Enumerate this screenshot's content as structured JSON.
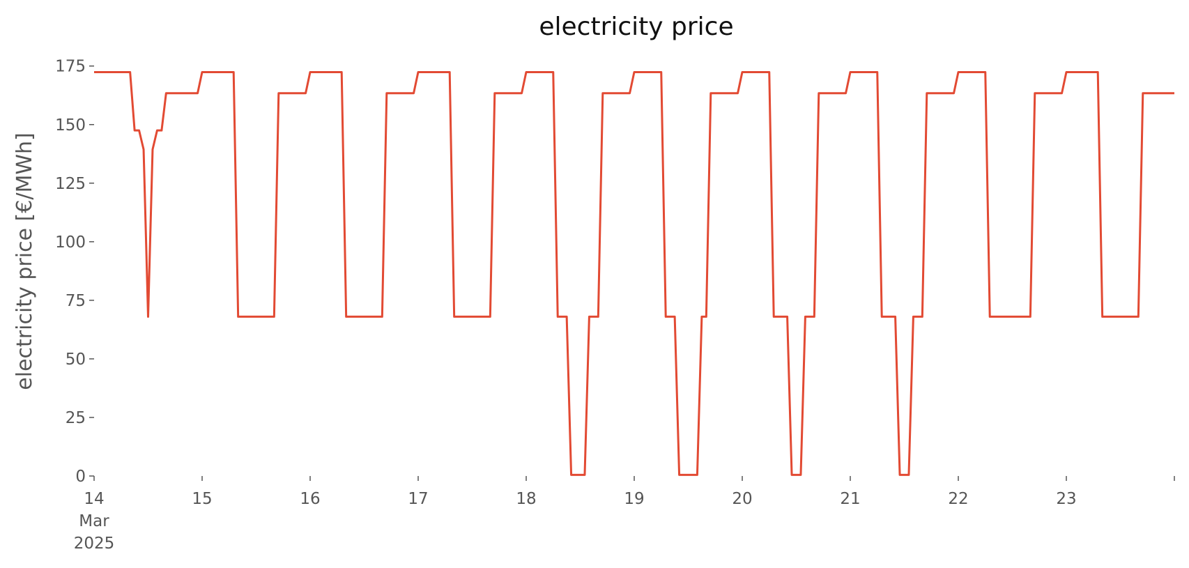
{
  "chart_data": {
    "type": "line",
    "title": "electricity price",
    "xlabel": "",
    "ylabel": "electricity price [€/MWh]",
    "x_start": "2025-03-14T00:00",
    "x_end": "2025-03-24T00:00",
    "x_tick_labels": [
      {
        "x": "2025-03-14T00:00",
        "lines": [
          "14",
          "Mar",
          "2025"
        ]
      },
      {
        "x": "2025-03-15T00:00",
        "lines": [
          "15"
        ]
      },
      {
        "x": "2025-03-16T00:00",
        "lines": [
          "16"
        ]
      },
      {
        "x": "2025-03-17T00:00",
        "lines": [
          "17"
        ]
      },
      {
        "x": "2025-03-18T00:00",
        "lines": [
          "18"
        ]
      },
      {
        "x": "2025-03-19T00:00",
        "lines": [
          "19"
        ]
      },
      {
        "x": "2025-03-20T00:00",
        "lines": [
          "20"
        ]
      },
      {
        "x": "2025-03-21T00:00",
        "lines": [
          "21"
        ]
      },
      {
        "x": "2025-03-22T00:00",
        "lines": [
          "22"
        ]
      },
      {
        "x": "2025-03-23T00:00",
        "lines": [
          "23"
        ]
      },
      {
        "x": "2025-03-24T00:00",
        "lines": [
          ""
        ]
      }
    ],
    "y_ticks": [
      0,
      25,
      50,
      75,
      100,
      125,
      150,
      175
    ],
    "ylim": [
      0,
      177
    ],
    "grid": false,
    "color": "#e24a33",
    "series": [
      {
        "points": [
          [
            "2025-03-14T00:00",
            172.4
          ],
          [
            "2025-03-14T08:00",
            172.4
          ],
          [
            "2025-03-14T09:00",
            147.5
          ],
          [
            "2025-03-14T10:00",
            147.5
          ],
          [
            "2025-03-14T11:00",
            139.4
          ],
          [
            "2025-03-14T12:00",
            68.0
          ],
          [
            "2025-03-14T13:00",
            139.4
          ],
          [
            "2025-03-14T14:00",
            147.5
          ],
          [
            "2025-03-14T15:00",
            147.5
          ],
          [
            "2025-03-14T16:00",
            163.4
          ],
          [
            "2025-03-14T23:00",
            163.4
          ],
          [
            "2025-03-15T00:00",
            172.4
          ],
          [
            "2025-03-15T07:00",
            172.4
          ],
          [
            "2025-03-15T08:00",
            68.0
          ],
          [
            "2025-03-15T16:00",
            68.0
          ],
          [
            "2025-03-15T17:00",
            163.4
          ],
          [
            "2025-03-15T23:00",
            163.4
          ],
          [
            "2025-03-16T00:00",
            172.4
          ],
          [
            "2025-03-16T07:00",
            172.4
          ],
          [
            "2025-03-16T08:00",
            68.0
          ],
          [
            "2025-03-16T16:00",
            68.0
          ],
          [
            "2025-03-16T17:00",
            163.4
          ],
          [
            "2025-03-16T23:00",
            163.4
          ],
          [
            "2025-03-17T00:00",
            172.4
          ],
          [
            "2025-03-17T07:00",
            172.4
          ],
          [
            "2025-03-17T08:00",
            68.0
          ],
          [
            "2025-03-17T16:00",
            68.0
          ],
          [
            "2025-03-17T17:00",
            163.4
          ],
          [
            "2025-03-17T23:00",
            163.4
          ],
          [
            "2025-03-18T00:00",
            172.4
          ],
          [
            "2025-03-18T06:00",
            172.4
          ],
          [
            "2025-03-18T07:00",
            68.0
          ],
          [
            "2025-03-18T09:00",
            68.0
          ],
          [
            "2025-03-18T10:00",
            0.5
          ],
          [
            "2025-03-18T13:00",
            0.5
          ],
          [
            "2025-03-18T14:00",
            68.0
          ],
          [
            "2025-03-18T16:00",
            68.0
          ],
          [
            "2025-03-18T17:00",
            163.4
          ],
          [
            "2025-03-18T23:00",
            163.4
          ],
          [
            "2025-03-19T00:00",
            172.4
          ],
          [
            "2025-03-19T06:00",
            172.4
          ],
          [
            "2025-03-19T07:00",
            68.0
          ],
          [
            "2025-03-19T09:00",
            68.0
          ],
          [
            "2025-03-19T10:00",
            0.5
          ],
          [
            "2025-03-19T14:00",
            0.5
          ],
          [
            "2025-03-19T15:00",
            68.0
          ],
          [
            "2025-03-19T16:00",
            68.0
          ],
          [
            "2025-03-19T17:00",
            163.4
          ],
          [
            "2025-03-19T23:00",
            163.4
          ],
          [
            "2025-03-20T00:00",
            172.4
          ],
          [
            "2025-03-20T06:00",
            172.4
          ],
          [
            "2025-03-20T07:00",
            68.0
          ],
          [
            "2025-03-20T10:00",
            68.0
          ],
          [
            "2025-03-20T11:00",
            0.5
          ],
          [
            "2025-03-20T13:00",
            0.5
          ],
          [
            "2025-03-20T14:00",
            68.0
          ],
          [
            "2025-03-20T16:00",
            68.0
          ],
          [
            "2025-03-20T17:00",
            163.4
          ],
          [
            "2025-03-20T23:00",
            163.4
          ],
          [
            "2025-03-21T00:00",
            172.4
          ],
          [
            "2025-03-21T06:00",
            172.4
          ],
          [
            "2025-03-21T07:00",
            68.0
          ],
          [
            "2025-03-21T10:00",
            68.0
          ],
          [
            "2025-03-21T11:00",
            0.5
          ],
          [
            "2025-03-21T13:00",
            0.5
          ],
          [
            "2025-03-21T14:00",
            68.0
          ],
          [
            "2025-03-21T16:00",
            68.0
          ],
          [
            "2025-03-21T17:00",
            163.4
          ],
          [
            "2025-03-21T23:00",
            163.4
          ],
          [
            "2025-03-22T00:00",
            172.4
          ],
          [
            "2025-03-22T06:00",
            172.4
          ],
          [
            "2025-03-22T07:00",
            68.0
          ],
          [
            "2025-03-22T16:00",
            68.0
          ],
          [
            "2025-03-22T17:00",
            163.4
          ],
          [
            "2025-03-22T23:00",
            163.4
          ],
          [
            "2025-03-23T00:00",
            172.4
          ],
          [
            "2025-03-23T07:00",
            172.4
          ],
          [
            "2025-03-23T08:00",
            68.0
          ],
          [
            "2025-03-23T16:00",
            68.0
          ],
          [
            "2025-03-23T17:00",
            163.4
          ],
          [
            "2025-03-24T00:00",
            163.4
          ]
        ]
      }
    ]
  }
}
